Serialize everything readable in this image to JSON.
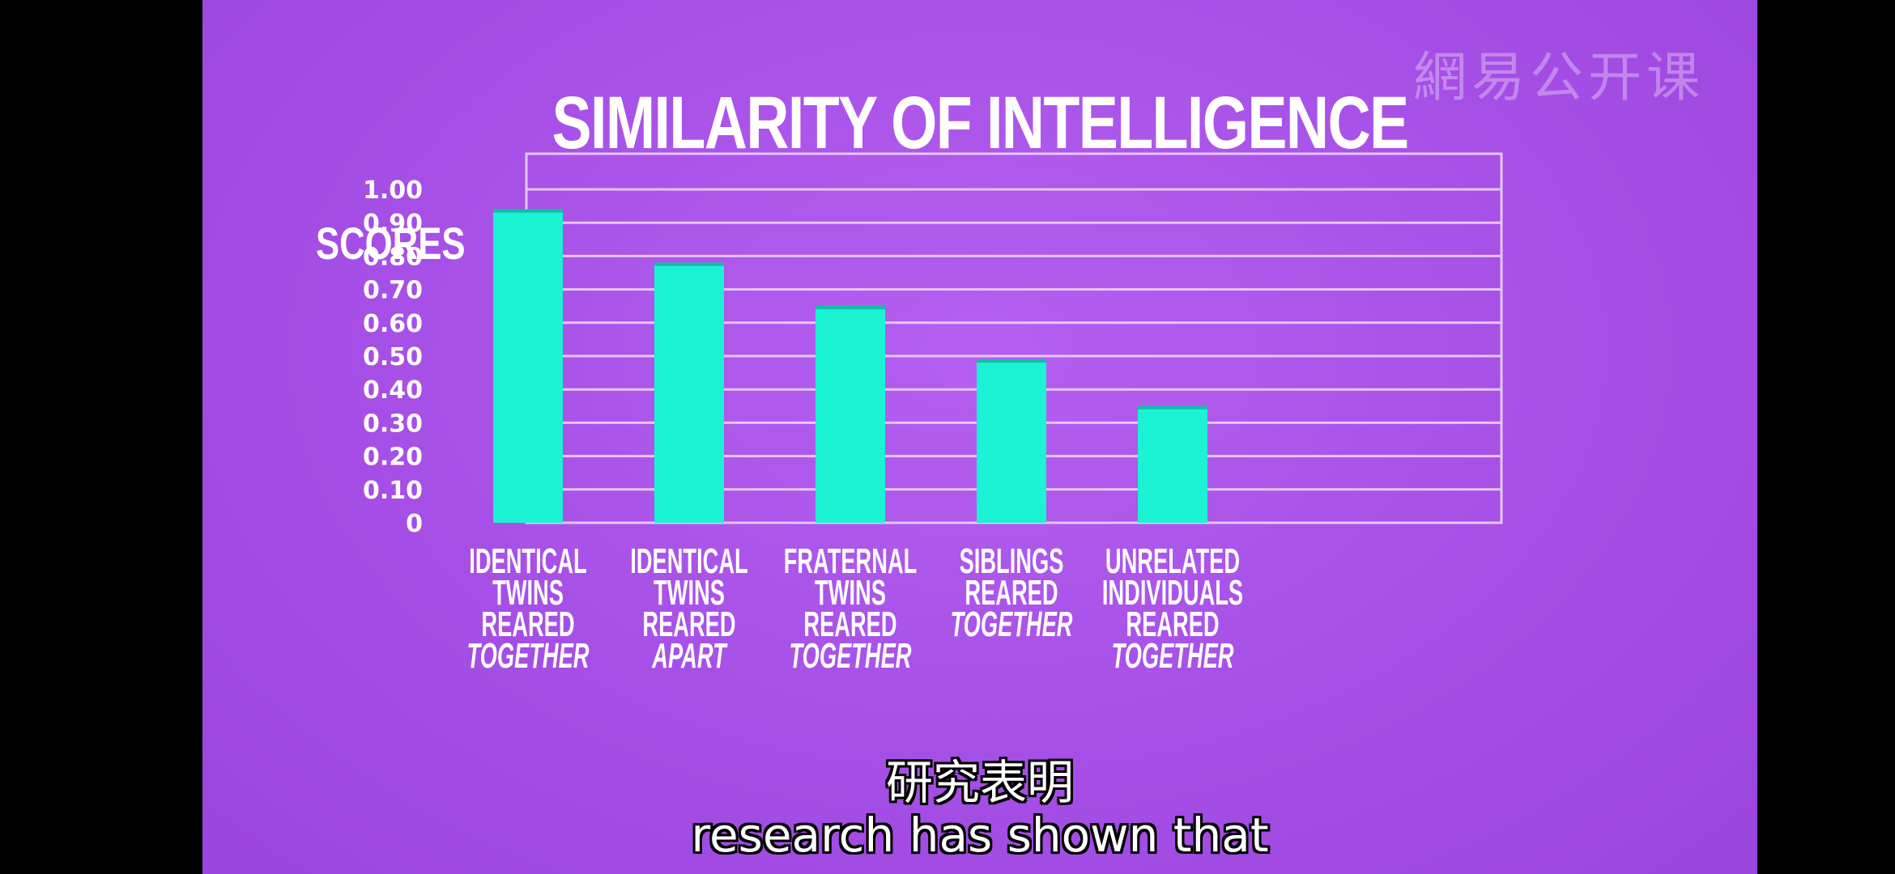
{
  "watermark": "網易公开课",
  "chart_data": {
    "type": "bar",
    "title": "SIMILARITY OF INTELLIGENCE",
    "ylabel": "SCORES",
    "xlabel": "",
    "ylim": [
      0,
      1.0
    ],
    "y_ticks": [
      "0",
      "0.10",
      "0.20",
      "0.30",
      "0.40",
      "0.50",
      "0.60",
      "0.70",
      "0.80",
      "0.90",
      "1.00"
    ],
    "categories": [
      [
        "IDENTICAL",
        "TWINS",
        "REARED",
        "TOGETHER"
      ],
      [
        "IDENTICAL",
        "TWINS",
        "REARED",
        "APART"
      ],
      [
        "FRATERNAL",
        "TWINS",
        "REARED",
        "TOGETHER"
      ],
      [
        "SIBLINGS",
        "REARED",
        "TOGETHER"
      ],
      [
        "UNRELATED",
        "INDIVIDUALS",
        "REARED",
        "TOGETHER"
      ]
    ],
    "values": [
      0.94,
      0.78,
      0.65,
      0.49,
      0.35
    ],
    "grid": true,
    "colors": {
      "bar": "#1cf2d4",
      "bar_top": "#0fbfa6",
      "grid": "#e4c6f7",
      "background": "#a94fe8"
    }
  },
  "subtitles": {
    "chinese": "研究表明",
    "english": "research has shown that"
  }
}
